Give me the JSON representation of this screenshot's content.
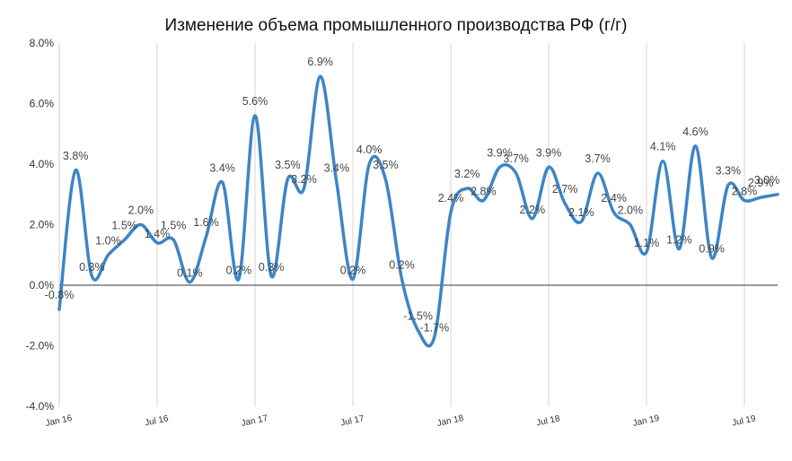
{
  "chart_data": {
    "type": "line",
    "title": "Изменение объема промышленного производства РФ (г/г)",
    "xlabel": "",
    "ylabel": "",
    "ylim": [
      -4.0,
      8.0
    ],
    "y_ticks": [
      "-4.0%",
      "-2.0%",
      "0.0%",
      "2.0%",
      "4.0%",
      "6.0%",
      "8.0%"
    ],
    "x_tick_labels": [
      "Jan 16",
      "Jul 16",
      "Jan 17",
      "Jul 17",
      "Jan 18",
      "Jul 18",
      "Jan 19",
      "Jul 19"
    ],
    "grid": "vertical lines at tick labels, horizontal line at zero",
    "legend": "none",
    "line_color": "#3d85c6",
    "x": [
      "Jan 16",
      "Feb 16",
      "Mar 16",
      "Apr 16",
      "May 16",
      "Jun 16",
      "Jul 16",
      "Aug 16",
      "Sep 16",
      "Oct 16",
      "Nov 16",
      "Dec 16",
      "Jan 17",
      "Feb 17",
      "Mar 17",
      "Apr 17",
      "May 17",
      "Jun 17",
      "Jul 17",
      "Aug 17",
      "Sep 17",
      "Oct 17",
      "Nov 17",
      "Dec 17",
      "Jan 18",
      "Feb 18",
      "Mar 18",
      "Apr 18",
      "May 18",
      "Jun 18",
      "Jul 18",
      "Aug 18",
      "Sep 18",
      "Oct 18",
      "Nov 18",
      "Dec 18",
      "Jan 19",
      "Feb 19",
      "Mar 19",
      "Apr 19",
      "May 19",
      "Jun 19",
      "Jul 19",
      "Aug 19"
    ],
    "values": [
      -0.8,
      3.8,
      0.3,
      1.0,
      1.5,
      2.0,
      1.4,
      1.5,
      0.1,
      1.6,
      3.4,
      0.2,
      5.6,
      0.3,
      3.5,
      3.2,
      6.9,
      3.4,
      0.2,
      4.0,
      3.5,
      0.2,
      -1.5,
      -1.7,
      2.4,
      3.2,
      2.8,
      3.9,
      3.7,
      2.2,
      3.9,
      2.7,
      2.1,
      3.7,
      2.4,
      2.0,
      1.1,
      4.1,
      1.2,
      4.6,
      0.9,
      3.3,
      2.8,
      2.9
    ],
    "data_labels": [
      "-0.8%",
      "3.8%",
      "0.3%",
      "1.0%",
      "1.5%",
      "2.0%",
      "1.4%",
      "1.5%",
      "0.1%",
      "1.6%",
      "3.4%",
      "0.2%",
      "5.6%",
      "0.3%",
      "3.5%",
      "3.2%",
      "6.9%",
      "3.4%",
      "0.2%",
      "4.0%",
      "3.5%",
      "0.2%",
      "-1.5%",
      "-1.7%",
      "2.4%",
      "3.2%",
      "2.8%",
      "3.9%",
      "3.7%",
      "2.2%",
      "3.9%",
      "2.7%",
      "2.1%",
      "3.7%",
      "2.4%",
      "2.0%",
      "1.1%",
      "4.1%",
      "1.2%",
      "4.6%",
      "0.9%",
      "3.3%",
      "2.8%",
      "2.9%"
    ],
    "extra_point": {
      "value": 3.0,
      "label": "3.0%"
    }
  }
}
